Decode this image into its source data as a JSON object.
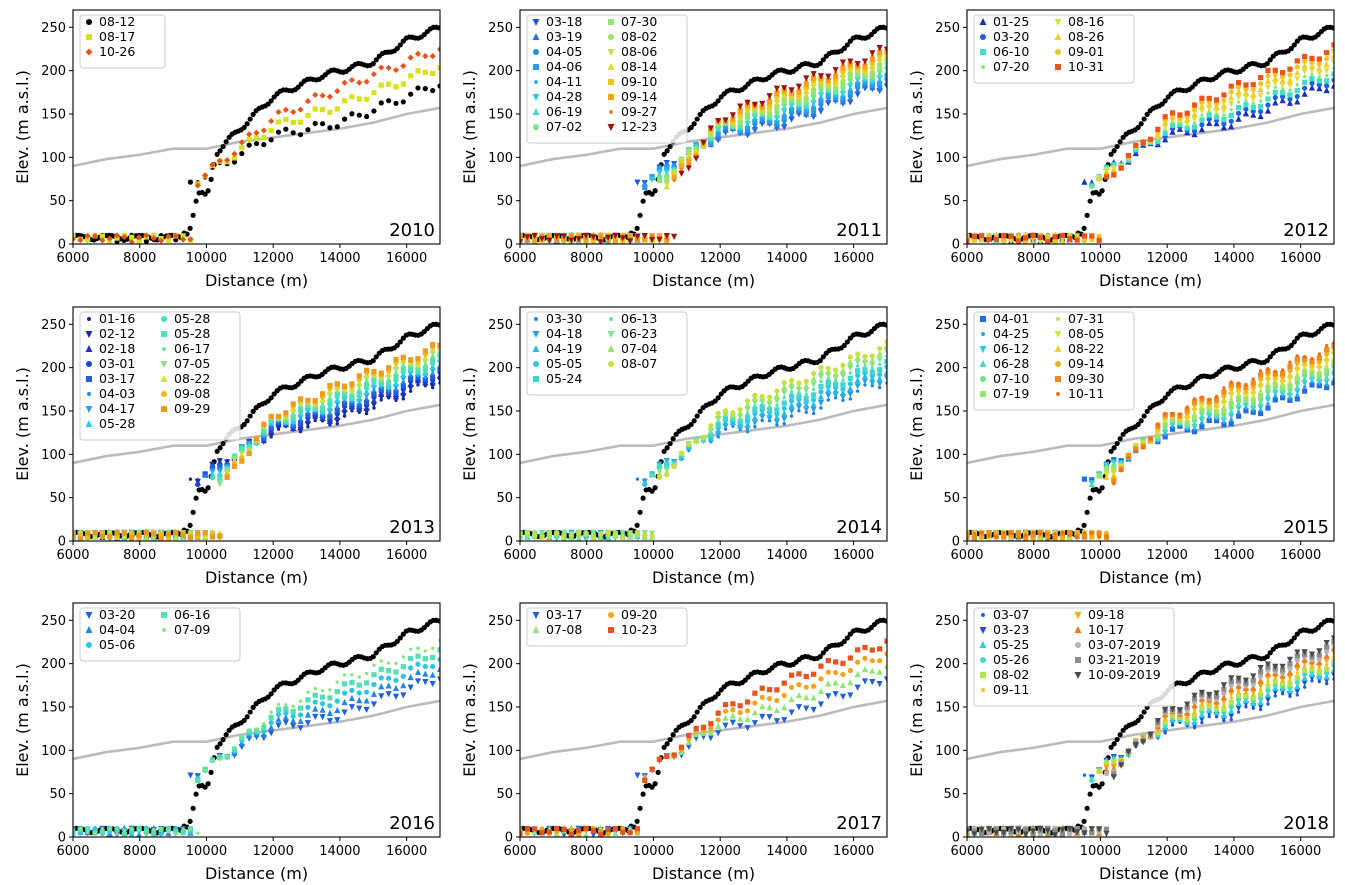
{
  "chart_data": [
    {
      "type": "scatter",
      "year_label": "2010",
      "xlabel": "Distance (m)",
      "ylabel": "Elev. (m a.s.l.)",
      "xlim": [
        6000,
        17000
      ],
      "ylim": [
        0,
        270
      ],
      "xticks": [
        "6000",
        "8000",
        "10000",
        "12000",
        "14000",
        "16000"
      ],
      "yticks": [
        "0",
        "50",
        "100",
        "150",
        "200",
        "250"
      ],
      "reference_line": {
        "color": "#bbbbbb",
        "x": [
          6000,
          7000,
          8000,
          9000,
          10000,
          11000,
          12000,
          13000,
          14000,
          15000,
          16000,
          17000
        ],
        "y": [
          90,
          98,
          103,
          110,
          110,
          118,
          123,
          128,
          133,
          140,
          150,
          157
        ]
      },
      "legend_columns": 1,
      "series": [
        {
          "name": "08-12",
          "color": "#000000",
          "marker": "circle"
        },
        {
          "name": "08-17",
          "color": "#d8e21a",
          "marker": "square"
        },
        {
          "name": "10-26",
          "color": "#e8541c",
          "marker": "diamond"
        }
      ]
    },
    {
      "type": "scatter",
      "year_label": "2011",
      "xlabel": "Distance (m)",
      "ylabel": "Elev. (m a.s.l.)",
      "xlim": [
        6000,
        17000
      ],
      "ylim": [
        0,
        270
      ],
      "xticks": [
        "6000",
        "8000",
        "10000",
        "12000",
        "14000",
        "16000"
      ],
      "yticks": [
        "0",
        "50",
        "100",
        "150",
        "200",
        "250"
      ],
      "reference_line": {
        "color": "#bbbbbb",
        "x": [
          6000,
          7000,
          8000,
          9000,
          10000,
          11000,
          12000,
          13000,
          14000,
          15000,
          16000,
          17000
        ],
        "y": [
          90,
          98,
          103,
          110,
          110,
          118,
          123,
          128,
          133,
          140,
          150,
          157
        ]
      },
      "legend_columns": 2,
      "series": [
        {
          "name": "03-18",
          "color": "#1f57d6",
          "marker": "triangle-down"
        },
        {
          "name": "03-19",
          "color": "#2a72e8",
          "marker": "triangle-up"
        },
        {
          "name": "04-05",
          "color": "#1f8fe8",
          "marker": "circle"
        },
        {
          "name": "04-06",
          "color": "#2b9ee8",
          "marker": "square"
        },
        {
          "name": "04-11",
          "color": "#28b4e6",
          "marker": "small-circle"
        },
        {
          "name": "04-28",
          "color": "#29c6e8",
          "marker": "triangle-down"
        },
        {
          "name": "06-19",
          "color": "#48dcc2",
          "marker": "triangle-up"
        },
        {
          "name": "07-02",
          "color": "#6ee68a",
          "marker": "circle"
        },
        {
          "name": "07-30",
          "color": "#8ee678",
          "marker": "square"
        },
        {
          "name": "08-02",
          "color": "#9fe066",
          "marker": "circle"
        },
        {
          "name": "08-06",
          "color": "#c4e04a",
          "marker": "triangle-down"
        },
        {
          "name": "08-14",
          "color": "#dcda2a",
          "marker": "triangle-up"
        },
        {
          "name": "09-10",
          "color": "#f2c41a",
          "marker": "square"
        },
        {
          "name": "09-14",
          "color": "#f5a418",
          "marker": "square"
        },
        {
          "name": "09-27",
          "color": "#f0822a",
          "marker": "small-circle"
        },
        {
          "name": "12-23",
          "color": "#9c1212",
          "marker": "triangle-down"
        }
      ]
    },
    {
      "type": "scatter",
      "year_label": "2012",
      "xlabel": "Distance (m)",
      "ylabel": "Elev. (m a.s.l.)",
      "xlim": [
        6000,
        17000
      ],
      "ylim": [
        0,
        270
      ],
      "xticks": [
        "6000",
        "8000",
        "10000",
        "12000",
        "14000",
        "16000"
      ],
      "yticks": [
        "0",
        "50",
        "100",
        "150",
        "200",
        "250"
      ],
      "reference_line": {
        "color": "#bbbbbb",
        "x": [
          6000,
          7000,
          8000,
          9000,
          10000,
          11000,
          12000,
          13000,
          14000,
          15000,
          16000,
          17000
        ],
        "y": [
          90,
          98,
          103,
          110,
          110,
          118,
          123,
          128,
          133,
          140,
          150,
          157
        ]
      },
      "legend_columns": 2,
      "series": [
        {
          "name": "01-25",
          "color": "#1a2fb8",
          "marker": "triangle-up"
        },
        {
          "name": "03-20",
          "color": "#1f5fe0",
          "marker": "circle"
        },
        {
          "name": "06-10",
          "color": "#3ee0c8",
          "marker": "square"
        },
        {
          "name": "07-20",
          "color": "#8ee678",
          "marker": "small-circle"
        },
        {
          "name": "08-16",
          "color": "#dce040",
          "marker": "triangle-down"
        },
        {
          "name": "08-26",
          "color": "#eed028",
          "marker": "triangle-up"
        },
        {
          "name": "09-01",
          "color": "#f5c418",
          "marker": "circle"
        },
        {
          "name": "10-31",
          "color": "#f0521c",
          "marker": "square"
        }
      ]
    },
    {
      "type": "scatter",
      "year_label": "2013",
      "xlabel": "Distance (m)",
      "ylabel": "Elev. (m a.s.l.)",
      "xlim": [
        6000,
        17000
      ],
      "ylim": [
        0,
        270
      ],
      "xticks": [
        "6000",
        "8000",
        "10000",
        "12000",
        "14000",
        "16000"
      ],
      "yticks": [
        "0",
        "50",
        "100",
        "150",
        "200",
        "250"
      ],
      "reference_line": {
        "color": "#bbbbbb",
        "x": [
          6000,
          7000,
          8000,
          9000,
          10000,
          11000,
          12000,
          13000,
          14000,
          15000,
          16000,
          17000
        ],
        "y": [
          90,
          98,
          103,
          110,
          110,
          118,
          123,
          128,
          133,
          140,
          150,
          157
        ]
      },
      "legend_columns": 2,
      "series": [
        {
          "name": "01-16",
          "color": "#142090",
          "marker": "small-circle"
        },
        {
          "name": "02-12",
          "color": "#1a2aa8",
          "marker": "triangle-down"
        },
        {
          "name": "02-18",
          "color": "#1c34c2",
          "marker": "triangle-up"
        },
        {
          "name": "03-01",
          "color": "#1a42d0",
          "marker": "circle"
        },
        {
          "name": "03-17",
          "color": "#1f5fe0",
          "marker": "square"
        },
        {
          "name": "04-03",
          "color": "#2186e8",
          "marker": "small-circle"
        },
        {
          "name": "04-17",
          "color": "#27a2e8",
          "marker": "triangle-down"
        },
        {
          "name": "05-28",
          "color": "#2ad0e0",
          "marker": "triangle-up"
        },
        {
          "name": "05-28",
          "color": "#44dcc0",
          "marker": "circle"
        },
        {
          "name": "05-28",
          "color": "#52e0b0",
          "marker": "square"
        },
        {
          "name": "06-17",
          "color": "#66e49c",
          "marker": "small-circle"
        },
        {
          "name": "07-05",
          "color": "#88e67e",
          "marker": "triangle-down"
        },
        {
          "name": "08-22",
          "color": "#d4e03a",
          "marker": "triangle-up"
        },
        {
          "name": "09-08",
          "color": "#f2ba1a",
          "marker": "circle"
        },
        {
          "name": "09-29",
          "color": "#f09a1c",
          "marker": "square"
        }
      ]
    },
    {
      "type": "scatter",
      "year_label": "2014",
      "xlabel": "Distance (m)",
      "ylabel": "Elev. (m a.s.l.)",
      "xlim": [
        6000,
        17000
      ],
      "ylim": [
        0,
        270
      ],
      "xticks": [
        "6000",
        "8000",
        "10000",
        "12000",
        "14000",
        "16000"
      ],
      "yticks": [
        "0",
        "50",
        "100",
        "150",
        "200",
        "250"
      ],
      "reference_line": {
        "color": "#bbbbbb",
        "x": [
          6000,
          7000,
          8000,
          9000,
          10000,
          11000,
          12000,
          13000,
          14000,
          15000,
          16000,
          17000
        ],
        "y": [
          90,
          98,
          103,
          110,
          110,
          118,
          123,
          128,
          133,
          140,
          150,
          157
        ]
      },
      "legend_columns": 2,
      "series": [
        {
          "name": "03-30",
          "color": "#1f7ee6",
          "marker": "small-circle"
        },
        {
          "name": "04-18",
          "color": "#27a0e8",
          "marker": "triangle-down"
        },
        {
          "name": "04-19",
          "color": "#28b8e6",
          "marker": "triangle-up"
        },
        {
          "name": "05-05",
          "color": "#2ac8e4",
          "marker": "circle"
        },
        {
          "name": "05-24",
          "color": "#3cd8d0",
          "marker": "square"
        },
        {
          "name": "06-13",
          "color": "#56e2b0",
          "marker": "small-circle"
        },
        {
          "name": "06-23",
          "color": "#7ee68a",
          "marker": "triangle-down"
        },
        {
          "name": "07-04",
          "color": "#9ee46c",
          "marker": "triangle-up"
        },
        {
          "name": "08-07",
          "color": "#c8e03c",
          "marker": "circle"
        }
      ]
    },
    {
      "type": "scatter",
      "year_label": "2015",
      "xlabel": "Distance (m)",
      "ylabel": "Elev. (m a.s.l.)",
      "xlim": [
        6000,
        17000
      ],
      "ylim": [
        0,
        270
      ],
      "xticks": [
        "6000",
        "8000",
        "10000",
        "12000",
        "14000",
        "16000"
      ],
      "yticks": [
        "0",
        "50",
        "100",
        "150",
        "200",
        "250"
      ],
      "reference_line": {
        "color": "#bbbbbb",
        "x": [
          6000,
          7000,
          8000,
          9000,
          10000,
          11000,
          12000,
          13000,
          14000,
          15000,
          16000,
          17000
        ],
        "y": [
          90,
          98,
          103,
          110,
          110,
          118,
          123,
          128,
          133,
          140,
          150,
          157
        ]
      },
      "legend_columns": 2,
      "series": [
        {
          "name": "04-01",
          "color": "#1f6ee6",
          "marker": "square"
        },
        {
          "name": "04-25",
          "color": "#27a0e8",
          "marker": "small-circle"
        },
        {
          "name": "06-12",
          "color": "#2ac8e2",
          "marker": "triangle-down"
        },
        {
          "name": "06-28",
          "color": "#48dcc0",
          "marker": "triangle-up"
        },
        {
          "name": "07-10",
          "color": "#70e488",
          "marker": "circle"
        },
        {
          "name": "07-19",
          "color": "#96e470",
          "marker": "square"
        },
        {
          "name": "07-31",
          "color": "#b8e250",
          "marker": "small-circle"
        },
        {
          "name": "08-05",
          "color": "#d6e036",
          "marker": "triangle-down"
        },
        {
          "name": "08-22",
          "color": "#ecd026",
          "marker": "triangle-up"
        },
        {
          "name": "09-14",
          "color": "#f5b01a",
          "marker": "circle"
        },
        {
          "name": "09-30",
          "color": "#f08c1c",
          "marker": "square"
        },
        {
          "name": "10-11",
          "color": "#f06a1c",
          "marker": "small-circle"
        }
      ]
    },
    {
      "type": "scatter",
      "year_label": "2016",
      "xlabel": "Distance (m)",
      "ylabel": "Elev. (m a.s.l.)",
      "xlim": [
        6000,
        17000
      ],
      "ylim": [
        0,
        270
      ],
      "xticks": [
        "6000",
        "8000",
        "10000",
        "12000",
        "14000",
        "16000"
      ],
      "yticks": [
        "0",
        "50",
        "100",
        "150",
        "200",
        "250"
      ],
      "reference_line": {
        "color": "#bbbbbb",
        "x": [
          6000,
          7000,
          8000,
          9000,
          10000,
          11000,
          12000,
          13000,
          14000,
          15000,
          16000,
          17000
        ],
        "y": [
          90,
          98,
          103,
          110,
          110,
          118,
          123,
          128,
          133,
          140,
          150,
          157
        ]
      },
      "legend_columns": 2,
      "series": [
        {
          "name": "03-20",
          "color": "#1f5fe0",
          "marker": "triangle-down"
        },
        {
          "name": "04-04",
          "color": "#2186e8",
          "marker": "triangle-up"
        },
        {
          "name": "05-06",
          "color": "#2ac8e6",
          "marker": "circle"
        },
        {
          "name": "06-16",
          "color": "#52e0b4",
          "marker": "square"
        },
        {
          "name": "07-09",
          "color": "#86e67e",
          "marker": "small-circle"
        }
      ]
    },
    {
      "type": "scatter",
      "year_label": "2017",
      "xlabel": "Distance (m)",
      "ylabel": "Elev. (m a.s.l.)",
      "xlim": [
        6000,
        17000
      ],
      "ylim": [
        0,
        270
      ],
      "xticks": [
        "6000",
        "8000",
        "10000",
        "12000",
        "14000",
        "16000"
      ],
      "yticks": [
        "0",
        "50",
        "100",
        "150",
        "200",
        "250"
      ],
      "reference_line": {
        "color": "#bbbbbb",
        "x": [
          6000,
          7000,
          8000,
          9000,
          10000,
          11000,
          12000,
          13000,
          14000,
          15000,
          16000,
          17000
        ],
        "y": [
          90,
          98,
          103,
          110,
          110,
          118,
          123,
          128,
          133,
          140,
          150,
          157
        ]
      },
      "legend_columns": 2,
      "series": [
        {
          "name": "03-17",
          "color": "#1f5fe0",
          "marker": "triangle-down"
        },
        {
          "name": "07-08",
          "color": "#8ee674",
          "marker": "triangle-up"
        },
        {
          "name": "09-20",
          "color": "#f5a418",
          "marker": "circle"
        },
        {
          "name": "10-23",
          "color": "#e8541c",
          "marker": "square"
        }
      ]
    },
    {
      "type": "scatter",
      "year_label": "2018",
      "xlabel": "Distance (m)",
      "ylabel": "Elev. (m a.s.l.)",
      "xlim": [
        6000,
        17000
      ],
      "ylim": [
        0,
        270
      ],
      "xticks": [
        "6000",
        "8000",
        "10000",
        "12000",
        "14000",
        "16000"
      ],
      "yticks": [
        "0",
        "50",
        "100",
        "150",
        "200",
        "250"
      ],
      "reference_line": {
        "color": "#bbbbbb",
        "x": [
          6000,
          7000,
          8000,
          9000,
          10000,
          11000,
          12000,
          13000,
          14000,
          15000,
          16000,
          17000
        ],
        "y": [
          90,
          98,
          103,
          110,
          110,
          118,
          123,
          128,
          133,
          140,
          150,
          157
        ]
      },
      "legend_columns": 2,
      "series": [
        {
          "name": "03-07",
          "color": "#1f5fe0",
          "marker": "small-circle"
        },
        {
          "name": "03-23",
          "color": "#1f4ed8",
          "marker": "triangle-down"
        },
        {
          "name": "05-25",
          "color": "#2ad0d8",
          "marker": "triangle-up"
        },
        {
          "name": "05-26",
          "color": "#44dcc0",
          "marker": "circle"
        },
        {
          "name": "08-02",
          "color": "#b6e24e",
          "marker": "square"
        },
        {
          "name": "09-11",
          "color": "#f5c418",
          "marker": "small-circle"
        },
        {
          "name": "09-18",
          "color": "#f2a81a",
          "marker": "triangle-down"
        },
        {
          "name": "10-17",
          "color": "#f07a1c",
          "marker": "triangle-up"
        },
        {
          "name": "03-07-2019",
          "color": "#b4b4b4",
          "marker": "circle"
        },
        {
          "name": "03-21-2019",
          "color": "#8c8c8c",
          "marker": "square"
        },
        {
          "name": "10-09-2019",
          "color": "#4a4a4a",
          "marker": "triangle-down"
        }
      ]
    }
  ]
}
